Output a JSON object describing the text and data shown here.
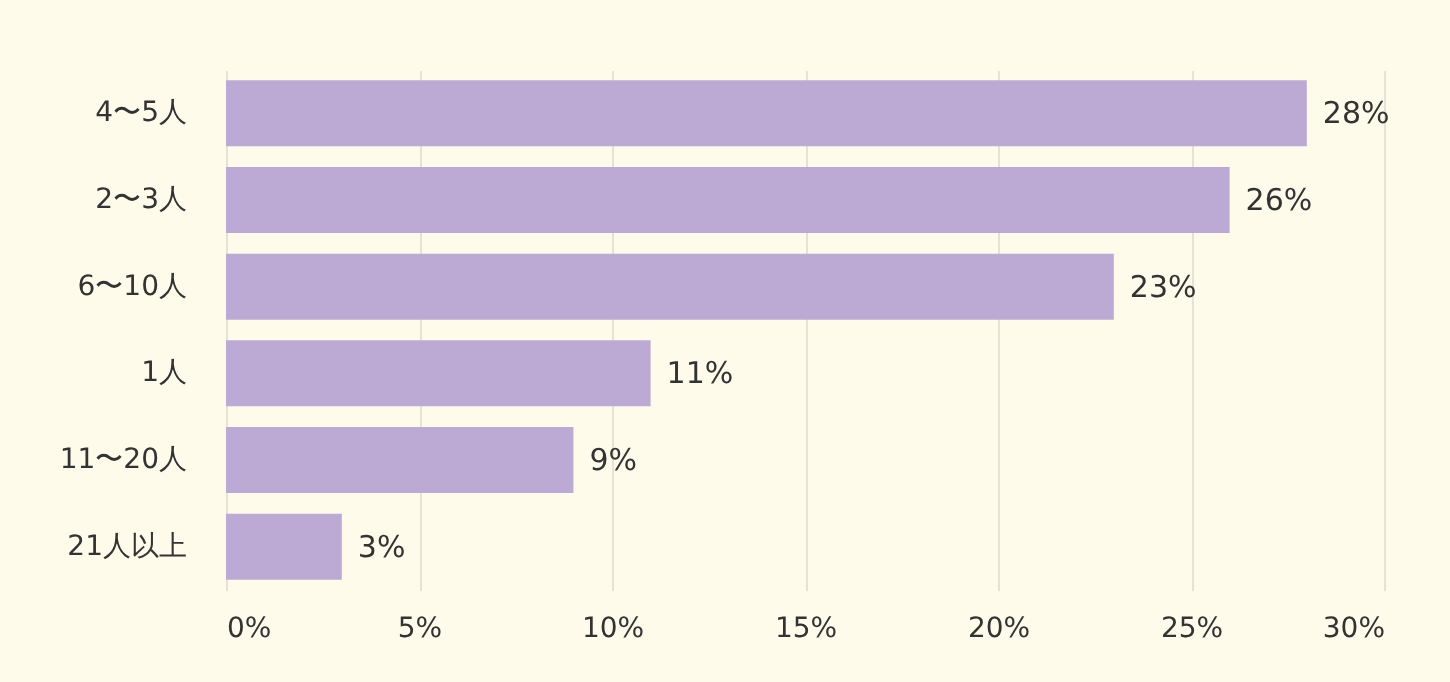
{
  "chart_data": {
    "type": "bar",
    "orientation": "horizontal",
    "categories": [
      "4〜5人",
      "2〜3人",
      "6〜10人",
      "1人",
      "11〜20人",
      "21人以上"
    ],
    "values": [
      28,
      26,
      23,
      11,
      9,
      3
    ],
    "color": "#bcaad4",
    "xlim": [
      0,
      30
    ],
    "xticks": [
      {
        "value": 0,
        "label": "0%"
      },
      {
        "value": 5,
        "label": "5%"
      },
      {
        "value": 10,
        "label": "10%"
      },
      {
        "value": 15,
        "label": "15%"
      },
      {
        "value": 20,
        "label": "20%"
      },
      {
        "value": 25,
        "label": "25%"
      },
      {
        "value": 30,
        "label": "30%"
      }
    ],
    "value_labels": [
      "28%",
      "26%",
      "23%",
      "11%",
      "9%",
      "3%"
    ],
    "grid": "x"
  }
}
